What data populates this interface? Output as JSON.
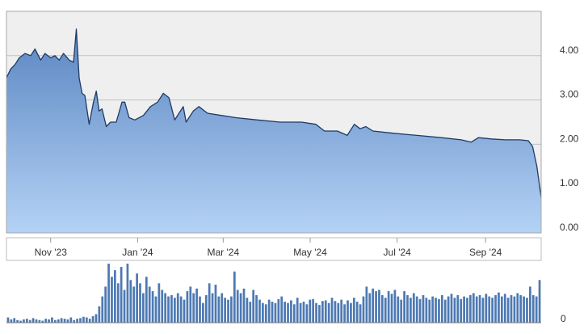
{
  "chart_data": [
    {
      "type": "area",
      "title": "",
      "xlabel": "",
      "ylabel": "",
      "x_ticks": [
        "Nov '23",
        "Jan '24",
        "Mar '24",
        "May '24",
        "Jul '24",
        "Sep '24"
      ],
      "y_ticks": [
        "4.00",
        "3.00",
        "2.00",
        "1.00",
        "0.00"
      ],
      "ylim": [
        0,
        5
      ],
      "grid": true,
      "y_axis_side": "right",
      "colors": {
        "line": "#1f3a66",
        "fill_top": "#5b86c2",
        "fill_bottom": "#b4d2f5",
        "plot_bg": "#efefef"
      },
      "series": [
        {
          "points": [
            [
              "2023-10-01",
              3.5
            ],
            [
              "2023-10-04",
              3.7
            ],
            [
              "2023-10-07",
              3.8
            ],
            [
              "2023-10-10",
              3.95
            ],
            [
              "2023-10-14",
              4.05
            ],
            [
              "2023-10-18",
              4.0
            ],
            [
              "2023-10-21",
              4.15
            ],
            [
              "2023-10-25",
              3.9
            ],
            [
              "2023-10-28",
              4.05
            ],
            [
              "2023-11-01",
              3.95
            ],
            [
              "2023-11-04",
              4.0
            ],
            [
              "2023-11-07",
              3.9
            ],
            [
              "2023-11-10",
              4.05
            ],
            [
              "2023-11-14",
              3.9
            ],
            [
              "2023-11-17",
              3.85
            ],
            [
              "2023-11-19",
              4.6
            ],
            [
              "2023-11-21",
              3.5
            ],
            [
              "2023-11-23",
              3.15
            ],
            [
              "2023-11-25",
              3.1
            ],
            [
              "2023-11-28",
              2.45
            ],
            [
              "2023-12-01",
              2.95
            ],
            [
              "2023-12-03",
              3.2
            ],
            [
              "2023-12-05",
              2.75
            ],
            [
              "2023-12-07",
              2.8
            ],
            [
              "2023-12-10",
              2.4
            ],
            [
              "2023-12-13",
              2.5
            ],
            [
              "2023-12-17",
              2.5
            ],
            [
              "2023-12-21",
              2.95
            ],
            [
              "2023-12-23",
              2.95
            ],
            [
              "2023-12-26",
              2.6
            ],
            [
              "2023-12-30",
              2.55
            ],
            [
              "2024-01-05",
              2.65
            ],
            [
              "2024-01-10",
              2.85
            ],
            [
              "2024-01-15",
              2.95
            ],
            [
              "2024-01-19",
              3.15
            ],
            [
              "2024-01-23",
              3.05
            ],
            [
              "2024-01-27",
              2.55
            ],
            [
              "2024-01-30",
              2.7
            ],
            [
              "2024-02-02",
              2.85
            ],
            [
              "2024-02-04",
              2.5
            ],
            [
              "2024-02-06",
              2.6
            ],
            [
              "2024-02-09",
              2.75
            ],
            [
              "2024-02-13",
              2.85
            ],
            [
              "2024-02-19",
              2.7
            ],
            [
              "2024-02-29",
              2.65
            ],
            [
              "2024-03-10",
              2.6
            ],
            [
              "2024-03-25",
              2.55
            ],
            [
              "2024-04-10",
              2.5
            ],
            [
              "2024-04-25",
              2.5
            ],
            [
              "2024-05-05",
              2.45
            ],
            [
              "2024-05-11",
              2.3
            ],
            [
              "2024-05-20",
              2.3
            ],
            [
              "2024-05-27",
              2.2
            ],
            [
              "2024-06-01",
              2.45
            ],
            [
              "2024-06-05",
              2.35
            ],
            [
              "2024-06-09",
              2.4
            ],
            [
              "2024-06-14",
              2.3
            ],
            [
              "2024-06-28",
              2.25
            ],
            [
              "2024-07-15",
              2.2
            ],
            [
              "2024-08-01",
              2.15
            ],
            [
              "2024-08-15",
              2.1
            ],
            [
              "2024-08-22",
              2.05
            ],
            [
              "2024-08-27",
              2.15
            ],
            [
              "2024-09-05",
              2.12
            ],
            [
              "2024-09-15",
              2.1
            ],
            [
              "2024-09-25",
              2.1
            ],
            [
              "2024-10-01",
              2.08
            ],
            [
              "2024-10-04",
              1.95
            ],
            [
              "2024-10-07",
              1.5
            ],
            [
              "2024-10-10",
              0.8
            ]
          ]
        }
      ]
    },
    {
      "type": "bar",
      "title": "",
      "y_ticks": [
        "0"
      ],
      "grid": false,
      "colors": {
        "bar": "#4d79b3"
      },
      "x_start": "2023-10-01",
      "x_end": "2024-10-10",
      "values": [
        0.08,
        0.05,
        0.07,
        0.04,
        0.03,
        0.05,
        0.06,
        0.04,
        0.07,
        0.05,
        0.04,
        0.03,
        0.06,
        0.05,
        0.08,
        0.04,
        0.05,
        0.07,
        0.06,
        0.05,
        0.08,
        0.04,
        0.06,
        0.07,
        0.09,
        0.08,
        0.06,
        0.1,
        0.13,
        0.25,
        0.4,
        0.55,
        0.9,
        0.7,
        0.8,
        0.6,
        0.85,
        0.5,
        0.9,
        0.65,
        0.55,
        0.75,
        0.6,
        0.45,
        0.7,
        0.55,
        0.48,
        0.4,
        0.6,
        0.5,
        0.45,
        0.4,
        0.42,
        0.38,
        0.45,
        0.4,
        0.35,
        0.48,
        0.55,
        0.45,
        0.52,
        0.4,
        0.3,
        0.42,
        0.6,
        0.45,
        0.58,
        0.4,
        0.45,
        0.38,
        0.35,
        0.4,
        0.78,
        0.5,
        0.45,
        0.52,
        0.38,
        0.32,
        0.5,
        0.42,
        0.35,
        0.3,
        0.28,
        0.35,
        0.32,
        0.3,
        0.36,
        0.4,
        0.32,
        0.3,
        0.34,
        0.28,
        0.38,
        0.3,
        0.32,
        0.28,
        0.35,
        0.36,
        0.3,
        0.27,
        0.33,
        0.34,
        0.3,
        0.38,
        0.33,
        0.3,
        0.35,
        0.28,
        0.34,
        0.3,
        0.38,
        0.32,
        0.28,
        0.4,
        0.55,
        0.45,
        0.52,
        0.48,
        0.5,
        0.42,
        0.38,
        0.48,
        0.44,
        0.5,
        0.4,
        0.35,
        0.48,
        0.42,
        0.38,
        0.45,
        0.4,
        0.36,
        0.42,
        0.38,
        0.35,
        0.4,
        0.38,
        0.36,
        0.42,
        0.35,
        0.4,
        0.44,
        0.38,
        0.42,
        0.36,
        0.4,
        0.38,
        0.42,
        0.45,
        0.4,
        0.42,
        0.38,
        0.44,
        0.4,
        0.38,
        0.42,
        0.46,
        0.4,
        0.44,
        0.38,
        0.42,
        0.4,
        0.45,
        0.42,
        0.4,
        0.38,
        0.55,
        0.42,
        0.4,
        0.65
      ]
    }
  ]
}
